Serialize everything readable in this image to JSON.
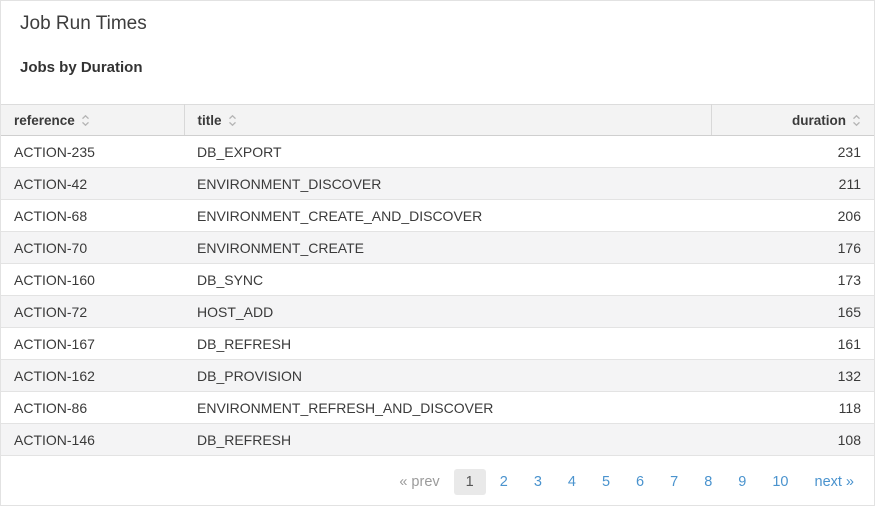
{
  "page": {
    "title": "Job Run Times",
    "subtitle": "Jobs by Duration"
  },
  "table": {
    "columns": [
      {
        "label": "reference",
        "align": "left"
      },
      {
        "label": "title",
        "align": "left"
      },
      {
        "label": "duration",
        "align": "right"
      }
    ],
    "rows": [
      {
        "reference": "ACTION-235",
        "title": "DB_EXPORT",
        "duration": "231"
      },
      {
        "reference": "ACTION-42",
        "title": "ENVIRONMENT_DISCOVER",
        "duration": "211"
      },
      {
        "reference": "ACTION-68",
        "title": "ENVIRONMENT_CREATE_AND_DISCOVER",
        "duration": "206"
      },
      {
        "reference": "ACTION-70",
        "title": "ENVIRONMENT_CREATE",
        "duration": "176"
      },
      {
        "reference": "ACTION-160",
        "title": "DB_SYNC",
        "duration": "173"
      },
      {
        "reference": "ACTION-72",
        "title": "HOST_ADD",
        "duration": "165"
      },
      {
        "reference": "ACTION-167",
        "title": "DB_REFRESH",
        "duration": "161"
      },
      {
        "reference": "ACTION-162",
        "title": "DB_PROVISION",
        "duration": "132"
      },
      {
        "reference": "ACTION-86",
        "title": "ENVIRONMENT_REFRESH_AND_DISCOVER",
        "duration": "118"
      },
      {
        "reference": "ACTION-146",
        "title": "DB_REFRESH",
        "duration": "108"
      }
    ]
  },
  "pagination": {
    "prev_label": "« prev",
    "pages": [
      "1",
      "2",
      "3",
      "4",
      "5",
      "6",
      "7",
      "8",
      "9",
      "10"
    ],
    "current_page": "1",
    "next_label": "next »"
  },
  "icons": {
    "sort-arrows-icon": "⌃⌄ (up/down chevron pair, gray)"
  },
  "colors": {
    "link_blue": "#4a93ce",
    "disabled_gray": "#9b9b9b",
    "text": "#3a3a3a",
    "header_bg": "#f3f3f3",
    "stripe_bg": "#f4f4f5",
    "active_page_bg": "#e9e9e9",
    "outer_border": "#e2e2e2"
  }
}
